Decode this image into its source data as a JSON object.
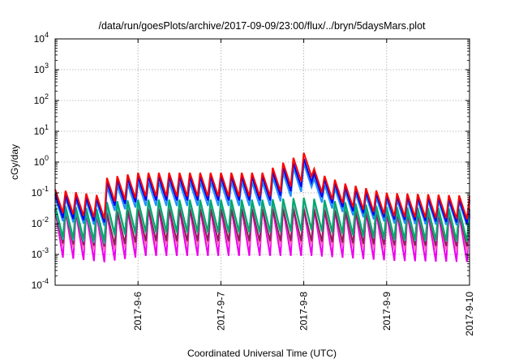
{
  "chart_data": {
    "type": "line",
    "title": "/data/run/goesPlots/archive/2017-09-09/23:00/flux/../bryn/5daysMars.plot",
    "xlabel": "Coordinated Universal Time (UTC)",
    "ylabel": "cGy/day",
    "yscale": "log",
    "ylim_exponents": [
      -4,
      4
    ],
    "y_tick_base": "10",
    "y_tick_exponents": [
      "-4",
      "-3",
      "-2",
      "-1",
      "0",
      "1",
      "2",
      "3",
      "4"
    ],
    "xlim": [
      "2017-09-05",
      "2017-09-10"
    ],
    "x_ticks": [
      "2017-9-6",
      "2017-9-7",
      "2017-9-8",
      "2017-9-9",
      "2017-9-10"
    ],
    "grid": true,
    "legend": "none",
    "cycle_hours": 3,
    "series": [
      {
        "color": "#ff0000",
        "peaks": [
          [
            0,
            0.13
          ],
          [
            0.5,
            0.085
          ],
          [
            0.6,
            0.3
          ],
          [
            1.0,
            0.45
          ],
          [
            1.5,
            0.45
          ],
          [
            2.5,
            0.45
          ],
          [
            3.0,
            2.0
          ],
          [
            3.05,
            0.9
          ],
          [
            3.2,
            0.4
          ],
          [
            3.5,
            0.2
          ],
          [
            4.0,
            0.1
          ],
          [
            5.0,
            0.08
          ]
        ],
        "depth": 0.17
      },
      {
        "color": "#0000ee",
        "peaks": [
          [
            0,
            0.09
          ],
          [
            0.5,
            0.065
          ],
          [
            0.6,
            0.22
          ],
          [
            1.0,
            0.33
          ],
          [
            1.5,
            0.33
          ],
          [
            2.5,
            0.33
          ],
          [
            3.0,
            1.3
          ],
          [
            3.05,
            0.6
          ],
          [
            3.2,
            0.3
          ],
          [
            3.5,
            0.15
          ],
          [
            4.0,
            0.08
          ],
          [
            5.0,
            0.06
          ]
        ],
        "depth": 0.17
      },
      {
        "color": "#1e90ff",
        "peaks": [
          [
            0,
            0.07
          ],
          [
            0.5,
            0.05
          ],
          [
            0.6,
            0.15
          ],
          [
            1.0,
            0.22
          ],
          [
            1.5,
            0.22
          ],
          [
            2.5,
            0.22
          ],
          [
            3.0,
            0.9
          ],
          [
            3.05,
            0.4
          ],
          [
            3.2,
            0.2
          ],
          [
            3.5,
            0.11
          ],
          [
            4.0,
            0.06
          ],
          [
            5.0,
            0.05
          ]
        ],
        "depth": 0.17
      },
      {
        "color": "#00a86b",
        "peaks": [
          [
            0,
            0.04
          ],
          [
            0.5,
            0.03
          ],
          [
            0.6,
            0.05
          ],
          [
            1.0,
            0.06
          ],
          [
            2.5,
            0.06
          ],
          [
            3.0,
            0.07
          ],
          [
            4.0,
            0.035
          ],
          [
            5.0,
            0.03
          ]
        ],
        "depth": 0.09
      },
      {
        "color": "#20b2aa",
        "peaks": [
          [
            0,
            0.03
          ],
          [
            0.5,
            0.022
          ],
          [
            0.6,
            0.04
          ],
          [
            1.0,
            0.05
          ],
          [
            2.5,
            0.05
          ],
          [
            3.0,
            0.06
          ],
          [
            4.0,
            0.028
          ],
          [
            5.0,
            0.025
          ]
        ],
        "depth": 0.1
      },
      {
        "color": "#8b2252",
        "peaks": [
          [
            0,
            0.025
          ],
          [
            0.5,
            0.02
          ],
          [
            1.0,
            0.03
          ],
          [
            2.5,
            0.03
          ],
          [
            3.0,
            0.03
          ],
          [
            4.0,
            0.022
          ],
          [
            5.0,
            0.02
          ]
        ],
        "depth": 0.09
      },
      {
        "color": "#ff69b4",
        "peaks": [
          [
            0,
            0.03
          ],
          [
            0.5,
            0.022
          ],
          [
            1.0,
            0.035
          ],
          [
            2.5,
            0.035
          ],
          [
            3.0,
            0.035
          ],
          [
            4.0,
            0.025
          ],
          [
            5.0,
            0.022
          ]
        ],
        "depth": 0.06
      },
      {
        "color": "#ee00ee",
        "peaks": [
          [
            0,
            0.028
          ],
          [
            0.5,
            0.02
          ],
          [
            1.0,
            0.032
          ],
          [
            2.5,
            0.032
          ],
          [
            3.0,
            0.032
          ],
          [
            4.0,
            0.022
          ],
          [
            5.0,
            0.02
          ]
        ],
        "depth": 0.028
      }
    ]
  }
}
